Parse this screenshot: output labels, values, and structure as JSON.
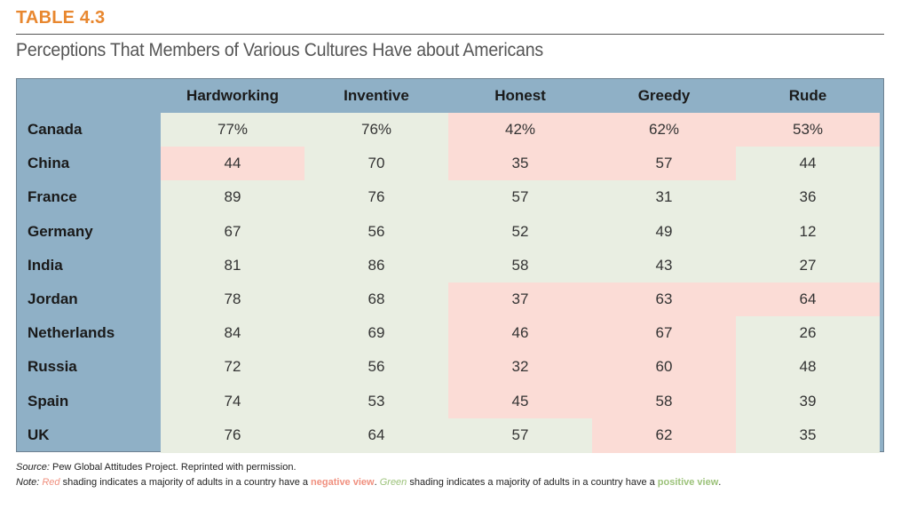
{
  "table_label": "TABLE 4.3",
  "title": "Perceptions That Members of Various Cultures Have about Americans",
  "columns": [
    "Hardworking",
    "Inventive",
    "Honest",
    "Greedy",
    "Rude"
  ],
  "rows": [
    {
      "country": "Canada",
      "values": [
        "77%",
        "76%",
        "42%",
        "62%",
        "53%"
      ],
      "shade": [
        "pos",
        "pos",
        "neg",
        "neg",
        "neg"
      ]
    },
    {
      "country": "China",
      "values": [
        "44",
        "70",
        "35",
        "57",
        "44"
      ],
      "shade": [
        "neg",
        "pos",
        "neg",
        "neg",
        "pos"
      ]
    },
    {
      "country": "France",
      "values": [
        "89",
        "76",
        "57",
        "31",
        "36"
      ],
      "shade": [
        "pos",
        "pos",
        "pos",
        "pos",
        "pos"
      ]
    },
    {
      "country": "Germany",
      "values": [
        "67",
        "56",
        "52",
        "49",
        "12"
      ],
      "shade": [
        "pos",
        "pos",
        "pos",
        "pos",
        "pos"
      ]
    },
    {
      "country": "India",
      "values": [
        "81",
        "86",
        "58",
        "43",
        "27"
      ],
      "shade": [
        "pos",
        "pos",
        "pos",
        "pos",
        "pos"
      ]
    },
    {
      "country": "Jordan",
      "values": [
        "78",
        "68",
        "37",
        "63",
        "64"
      ],
      "shade": [
        "pos",
        "pos",
        "neg",
        "neg",
        "neg"
      ]
    },
    {
      "country": "Netherlands",
      "values": [
        "84",
        "69",
        "46",
        "67",
        "26"
      ],
      "shade": [
        "pos",
        "pos",
        "neg",
        "neg",
        "pos"
      ]
    },
    {
      "country": "Russia",
      "values": [
        "72",
        "56",
        "32",
        "60",
        "48"
      ],
      "shade": [
        "pos",
        "pos",
        "neg",
        "neg",
        "pos"
      ]
    },
    {
      "country": "Spain",
      "values": [
        "74",
        "53",
        "45",
        "58",
        "39"
      ],
      "shade": [
        "pos",
        "pos",
        "neg",
        "neg",
        "pos"
      ]
    },
    {
      "country": "UK",
      "values": [
        "76",
        "64",
        "57",
        "62",
        "35"
      ],
      "shade": [
        "pos",
        "pos",
        "pos",
        "neg",
        "pos"
      ]
    }
  ],
  "colors": {
    "positive": "#e9eee2",
    "negative": "#fbdcd6",
    "header_bg": "#8fb0c6",
    "accent": "#e8872f"
  },
  "source": {
    "label": "Source:",
    "text": " Pew Global Attitudes Project. Reprinted with permission."
  },
  "note": {
    "label": "Note:",
    "red_word": "Red",
    "part1": " shading indicates a majority of adults in a country have a ",
    "negative_view": "negative view",
    "part2": ". ",
    "green_word": "Green",
    "part3": " shading indicates a majority of adults in a country have a ",
    "positive_view": "positive view",
    "part4": "."
  }
}
